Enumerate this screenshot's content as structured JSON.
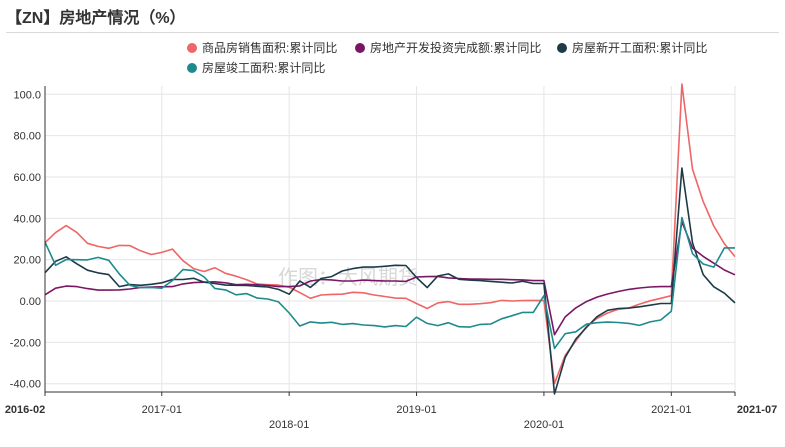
{
  "title": "【ZN】房地产情况（%）",
  "watermark": "作图：大风期货",
  "chart_data": {
    "type": "line",
    "title": "【ZN】房地产情况（%）",
    "ylim": [
      -44,
      104
    ],
    "yticks": [
      100.0,
      80.0,
      60.0,
      40.0,
      20.0,
      0.0,
      -20.0,
      -40.0
    ],
    "ytick_labels": [
      "100.0",
      "80.00",
      "60.00",
      "40.00",
      "20.00",
      "0.00",
      "-20.00",
      "-40.00"
    ],
    "xticks": [
      {
        "label": "2016-02",
        "row": 1,
        "bold": true,
        "index": 0
      },
      {
        "label": "2017-01",
        "row": 1,
        "bold": false,
        "index": 11
      },
      {
        "label": "2018-01",
        "row": 2,
        "bold": false,
        "index": 23
      },
      {
        "label": "2019-01",
        "row": 1,
        "bold": false,
        "index": 35
      },
      {
        "label": "2020-01",
        "row": 2,
        "bold": false,
        "index": 47
      },
      {
        "label": "2021-01",
        "row": 1,
        "bold": false,
        "index": 59
      },
      {
        "label": "2021-07",
        "row": 1,
        "bold": true,
        "index": 65
      }
    ],
    "x": [
      "2016-02",
      "2016-03",
      "2016-04",
      "2016-05",
      "2016-06",
      "2016-07",
      "2016-08",
      "2016-09",
      "2016-10",
      "2016-11",
      "2016-12",
      "2017-01",
      "2017-02",
      "2017-03",
      "2017-04",
      "2017-05",
      "2017-06",
      "2017-07",
      "2017-08",
      "2017-09",
      "2017-10",
      "2017-11",
      "2017-12",
      "2018-01",
      "2018-02",
      "2018-03",
      "2018-04",
      "2018-05",
      "2018-06",
      "2018-07",
      "2018-08",
      "2018-09",
      "2018-10",
      "2018-11",
      "2018-12",
      "2019-01",
      "2019-02",
      "2019-03",
      "2019-04",
      "2019-05",
      "2019-06",
      "2019-07",
      "2019-08",
      "2019-09",
      "2019-10",
      "2019-11",
      "2019-12",
      "2020-01",
      "2020-02",
      "2020-03",
      "2020-04",
      "2020-05",
      "2020-06",
      "2020-07",
      "2020-08",
      "2020-09",
      "2020-10",
      "2020-11",
      "2020-12",
      "2021-01",
      "2021-02",
      "2021-03",
      "2021-04",
      "2021-05",
      "2021-06",
      "2021-07"
    ],
    "series": [
      {
        "name": "商品房销售面积:累计同比",
        "color": "#ee6666",
        "values": [
          28.2,
          33.1,
          36.5,
          33.2,
          27.9,
          26.4,
          25.5,
          26.9,
          26.8,
          24.3,
          22.5,
          23.5,
          25.1,
          19.5,
          15.7,
          14.3,
          16.1,
          13.4,
          12.0,
          10.3,
          8.2,
          7.9,
          7.7,
          6.7,
          4.1,
          1.3,
          2.9,
          3.2,
          3.3,
          4.2,
          4.0,
          2.9,
          2.2,
          1.4,
          1.3,
          -1.2,
          -3.6,
          -0.9,
          -0.3,
          -1.6,
          -1.6,
          -1.3,
          -0.8,
          0.3,
          0.0,
          0.2,
          0.3,
          0.2,
          -39.9,
          -26.3,
          -19.3,
          -12.3,
          -8.4,
          -5.8,
          -4.0,
          -3.4,
          -1.5,
          0.1,
          1.3,
          2.6,
          104.9,
          63.8,
          48.1,
          36.3,
          27.7,
          21.5
        ]
      },
      {
        "name": "房地产开发投资完成额:累计同比",
        "color": "#7b1665",
        "values": [
          3.0,
          6.2,
          7.2,
          7.0,
          6.0,
          5.3,
          5.3,
          5.4,
          5.8,
          6.6,
          6.8,
          6.9,
          7.0,
          8.3,
          8.9,
          9.1,
          9.3,
          8.8,
          7.9,
          8.1,
          7.9,
          7.5,
          7.0,
          7.0,
          7.3,
          9.7,
          10.4,
          10.2,
          9.7,
          9.7,
          10.1,
          9.9,
          9.7,
          9.7,
          9.5,
          11.6,
          11.8,
          11.9,
          11.2,
          10.9,
          10.6,
          10.6,
          10.5,
          10.5,
          10.3,
          10.2,
          9.9,
          9.9,
          -16.3,
          -7.7,
          -3.3,
          -0.3,
          1.9,
          3.4,
          4.6,
          5.6,
          6.3,
          6.8,
          7.0,
          7.0,
          38.3,
          25.6,
          21.6,
          18.3,
          15.0,
          12.7
        ]
      },
      {
        "name": "房屋新开工面积:累计同比",
        "color": "#1d3a48",
        "values": [
          13.7,
          19.2,
          21.4,
          18.0,
          14.9,
          13.6,
          12.8,
          7.0,
          8.0,
          7.6,
          8.1,
          8.8,
          10.4,
          10.4,
          11.0,
          9.1,
          8.5,
          7.7,
          7.6,
          7.5,
          7.1,
          6.8,
          5.6,
          3.3,
          9.7,
          6.6,
          10.9,
          11.8,
          14.5,
          15.7,
          16.4,
          16.4,
          16.8,
          17.3,
          17.2,
          11.4,
          6.5,
          12.1,
          13.1,
          10.5,
          10.1,
          9.9,
          9.5,
          9.1,
          8.7,
          9.6,
          8.5,
          8.5,
          -44.9,
          -27.2,
          -18.4,
          -12.8,
          -7.6,
          -4.5,
          -3.6,
          -3.4,
          -2.8,
          -2.0,
          -1.2,
          -1.2,
          64.3,
          28.2,
          12.8,
          6.9,
          3.8,
          -0.9
        ]
      },
      {
        "name": "房屋竣工面积:累计同比",
        "color": "#1f8a8e",
        "values": [
          28.5,
          17.3,
          20.1,
          20.0,
          19.9,
          21.1,
          19.7,
          13.1,
          7.6,
          6.5,
          6.6,
          6.2,
          9.9,
          15.2,
          14.7,
          11.6,
          6.1,
          5.4,
          3.0,
          3.6,
          1.4,
          1.0,
          -0.4,
          -5.8,
          -12.1,
          -10.1,
          -10.7,
          -10.3,
          -11.3,
          -10.9,
          -11.6,
          -11.9,
          -12.5,
          -11.9,
          -12.3,
          -7.8,
          -10.8,
          -11.9,
          -10.5,
          -12.4,
          -12.6,
          -11.3,
          -11.1,
          -8.6,
          -7.1,
          -5.5,
          -5.5,
          2.6,
          -22.9,
          -15.8,
          -14.9,
          -11.2,
          -10.5,
          -10.2,
          -10.4,
          -10.8,
          -11.8,
          -10.1,
          -9.2,
          -4.9,
          40.4,
          22.9,
          17.9,
          16.4,
          25.7,
          25.7
        ]
      }
    ]
  }
}
